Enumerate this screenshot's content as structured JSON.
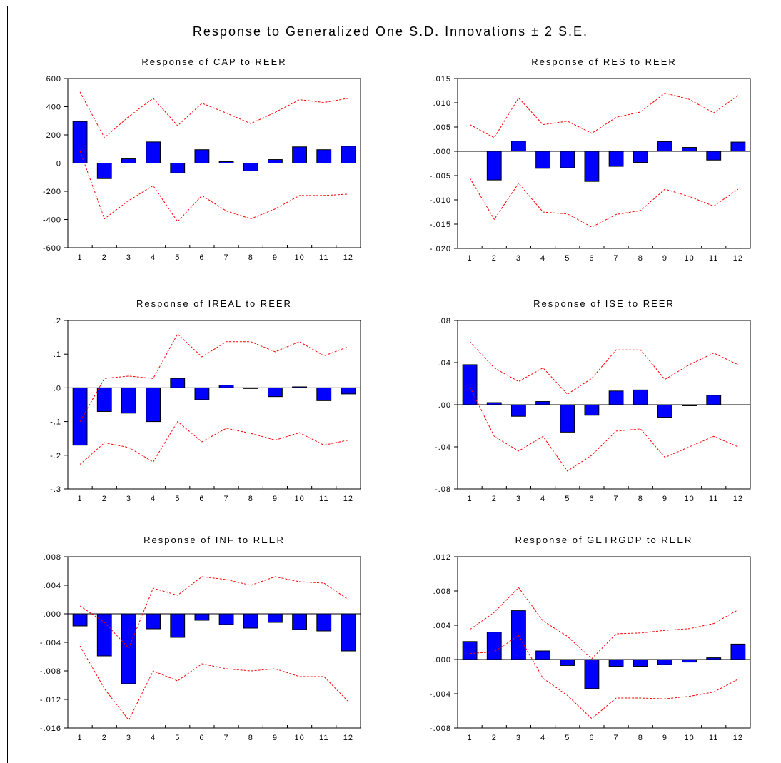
{
  "figure": {
    "title": "Response to Generalized One S.D. Innovations ± 2 S.E."
  },
  "chart_data": [
    {
      "type": "bar",
      "title": "Response of CAP to REER",
      "categories": [
        "1",
        "2",
        "3",
        "4",
        "5",
        "6",
        "7",
        "8",
        "9",
        "10",
        "11",
        "12"
      ],
      "ylim": [
        -600,
        600
      ],
      "yticks": [
        -600,
        -400,
        -200,
        0,
        200,
        400,
        600
      ],
      "ytick_labels": [
        "-600",
        "-400",
        "-200",
        "0",
        "200",
        "400",
        "600"
      ],
      "series": [
        {
          "kind": "bar",
          "values": [
            295,
            -110,
            30,
            150,
            -70,
            95,
            10,
            -55,
            25,
            115,
            95,
            120
          ]
        },
        {
          "kind": "band",
          "upper": [
            505,
            180,
            330,
            460,
            265,
            425,
            355,
            280,
            360,
            450,
            430,
            460
          ],
          "lower": [
            85,
            -395,
            -265,
            -160,
            -415,
            -230,
            -340,
            -395,
            -325,
            -230,
            -230,
            -220
          ]
        }
      ],
      "colors": {
        "bar": "#0000ff",
        "band": "#ff0000"
      }
    },
    {
      "type": "bar",
      "title": "Response of RES to REER",
      "categories": [
        "1",
        "2",
        "3",
        "4",
        "5",
        "6",
        "7",
        "8",
        "9",
        "10",
        "11",
        "12"
      ],
      "ylim": [
        -0.02,
        0.015
      ],
      "yticks": [
        -0.02,
        -0.015,
        -0.01,
        -0.005,
        0,
        0.005,
        0.01,
        0.015
      ],
      "ytick_labels": [
        "-.020",
        "-.015",
        "-.010",
        "-.005",
        ".000",
        ".005",
        ".010",
        ".015"
      ],
      "series": [
        {
          "kind": "bar",
          "values": [
            0,
            -0.0059,
            0.0021,
            -0.0035,
            -0.0034,
            -0.0062,
            -0.0031,
            -0.0023,
            0.002,
            0.0008,
            -0.0018,
            0.0019
          ]
        },
        {
          "kind": "band",
          "upper": [
            0.0055,
            0.0028,
            0.011,
            0.0055,
            0.0062,
            0.0037,
            0.007,
            0.0081,
            0.012,
            0.0107,
            0.0079,
            0.0115
          ],
          "lower": [
            -0.0055,
            -0.014,
            -0.0066,
            -0.0125,
            -0.0129,
            -0.0156,
            -0.013,
            -0.0122,
            -0.0078,
            -0.0093,
            -0.0113,
            -0.0078
          ]
        }
      ],
      "colors": {
        "bar": "#0000ff",
        "band": "#ff0000"
      }
    },
    {
      "type": "bar",
      "title": "Response of IREAL to REER",
      "categories": [
        "1",
        "2",
        "3",
        "4",
        "5",
        "6",
        "7",
        "8",
        "9",
        "10",
        "11",
        "12"
      ],
      "ylim": [
        -0.3,
        0.2
      ],
      "yticks": [
        -0.3,
        -0.2,
        -0.1,
        0,
        0.1,
        0.2
      ],
      "ytick_labels": [
        "-.3",
        "-.2",
        "-.1",
        ".0",
        ".1",
        ".2"
      ],
      "series": [
        {
          "kind": "bar",
          "values": [
            -0.17,
            -0.07,
            -0.075,
            -0.1,
            0.028,
            -0.035,
            0.008,
            -0.002,
            -0.026,
            0.003,
            -0.038,
            -0.018
          ]
        },
        {
          "kind": "band",
          "upper": [
            -0.1,
            0.028,
            0.035,
            0.028,
            0.16,
            0.092,
            0.137,
            0.137,
            0.107,
            0.137,
            0.095,
            0.122
          ],
          "lower": [
            -0.227,
            -0.163,
            -0.177,
            -0.22,
            -0.1,
            -0.16,
            -0.12,
            -0.135,
            -0.155,
            -0.133,
            -0.17,
            -0.155
          ]
        }
      ],
      "colors": {
        "bar": "#0000ff",
        "band": "#ff0000"
      }
    },
    {
      "type": "bar",
      "title": "Response of ISE to REER",
      "categories": [
        "1",
        "2",
        "3",
        "4",
        "5",
        "6",
        "7",
        "8",
        "9",
        "10",
        "11",
        "12"
      ],
      "ylim": [
        -0.08,
        0.08
      ],
      "yticks": [
        -0.08,
        -0.04,
        0,
        0.04,
        0.08
      ],
      "ytick_labels": [
        "-.08",
        "-.04",
        ".00",
        ".04",
        ".08"
      ],
      "series": [
        {
          "kind": "bar",
          "values": [
            0.038,
            0.002,
            -0.011,
            0.003,
            -0.026,
            -0.01,
            0.013,
            0.014,
            -0.012,
            -0.001,
            0.009,
            0
          ]
        },
        {
          "kind": "band",
          "upper": [
            0.06,
            0.035,
            0.022,
            0.035,
            0.01,
            0.025,
            0.052,
            0.052,
            0.024,
            0.038,
            0.049,
            0.038
          ],
          "lower": [
            0.017,
            -0.03,
            -0.044,
            -0.03,
            -0.063,
            -0.048,
            -0.025,
            -0.023,
            -0.05,
            -0.04,
            -0.03,
            -0.04
          ]
        }
      ],
      "colors": {
        "bar": "#0000ff",
        "band": "#ff0000"
      }
    },
    {
      "type": "bar",
      "title": "Response of INF to REER",
      "categories": [
        "1",
        "2",
        "3",
        "4",
        "5",
        "6",
        "7",
        "8",
        "9",
        "10",
        "11",
        "12"
      ],
      "ylim": [
        -0.016,
        0.008
      ],
      "yticks": [
        -0.016,
        -0.012,
        -0.008,
        -0.004,
        0,
        0.004,
        0.008
      ],
      "ytick_labels": [
        "-.016",
        "-.012",
        "-.008",
        "-.004",
        ".000",
        ".004",
        ".008"
      ],
      "series": [
        {
          "kind": "bar",
          "values": [
            -0.0017,
            -0.0059,
            -0.0098,
            -0.0021,
            -0.0033,
            -0.0009,
            -0.0015,
            -0.002,
            -0.0012,
            -0.0022,
            -0.0024,
            -0.0052
          ]
        },
        {
          "kind": "band",
          "upper": [
            0.0011,
            -0.0012,
            -0.0048,
            0.0036,
            0.0026,
            0.0052,
            0.0048,
            0.004,
            0.0052,
            0.0045,
            0.0043,
            0.002
          ],
          "lower": [
            -0.0045,
            -0.0105,
            -0.0149,
            -0.008,
            -0.0094,
            -0.007,
            -0.0077,
            -0.008,
            -0.0077,
            -0.0088,
            -0.0088,
            -0.0123
          ]
        }
      ],
      "colors": {
        "bar": "#0000ff",
        "band": "#ff0000"
      }
    },
    {
      "type": "bar",
      "title": "Response of GETRGDP to REER",
      "categories": [
        "1",
        "2",
        "3",
        "4",
        "5",
        "6",
        "7",
        "8",
        "9",
        "10",
        "11",
        "12"
      ],
      "ylim": [
        -0.008,
        0.012
      ],
      "yticks": [
        -0.008,
        -0.004,
        0,
        0.004,
        0.008,
        0.012
      ],
      "ytick_labels": [
        "-.008",
        "-.004",
        ".000",
        ".004",
        ".008",
        ".012"
      ],
      "series": [
        {
          "kind": "bar",
          "values": [
            0.0021,
            0.0032,
            0.0057,
            0.001,
            -0.0007,
            -0.0034,
            -0.0008,
            -0.0008,
            -0.0006,
            -0.0003,
            0.0002,
            0.0018
          ]
        },
        {
          "kind": "band",
          "upper": [
            0.0035,
            0.0055,
            0.0084,
            0.0045,
            0.0027,
            0.0001,
            0.003,
            0.0031,
            0.0034,
            0.0036,
            0.0042,
            0.0058
          ],
          "lower": [
            0.0007,
            0.0009,
            0.0028,
            -0.0022,
            -0.0042,
            -0.0069,
            -0.0045,
            -0.0045,
            -0.0046,
            -0.0043,
            -0.0038,
            -0.0023
          ]
        }
      ],
      "colors": {
        "bar": "#0000ff",
        "band": "#ff0000"
      }
    }
  ]
}
